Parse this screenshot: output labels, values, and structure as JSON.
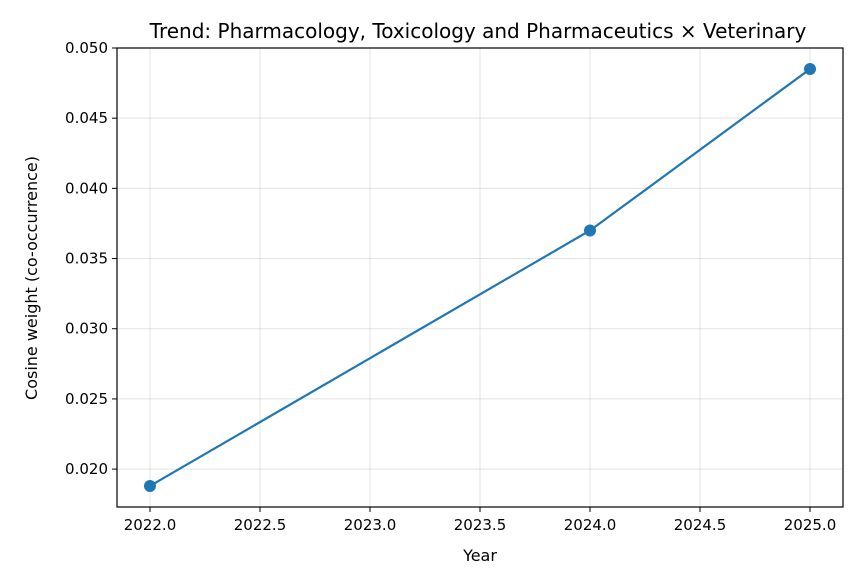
{
  "chart_data": {
    "type": "line",
    "title": "Trend: Pharmacology, Toxicology and Pharmaceutics × Veterinary",
    "xlabel": "Year",
    "ylabel": "Cosine weight (co-occurrence)",
    "xlim": [
      2021.85,
      2025.15
    ],
    "ylim": [
      0.0173,
      0.05
    ],
    "xticks": [
      2022.0,
      2022.5,
      2023.0,
      2023.5,
      2024.0,
      2024.5,
      2025.0
    ],
    "xtick_labels": [
      "2022.0",
      "2022.5",
      "2023.0",
      "2023.5",
      "2024.0",
      "2024.5",
      "2025.0"
    ],
    "yticks": [
      0.02,
      0.025,
      0.03,
      0.035,
      0.04,
      0.045,
      0.05
    ],
    "ytick_labels": [
      "0.020",
      "0.025",
      "0.030",
      "0.035",
      "0.040",
      "0.045",
      "0.050"
    ],
    "grid": true,
    "color": "#1f77b4",
    "series": [
      {
        "x": [
          2022,
          2024,
          2025
        ],
        "y": [
          0.0188,
          0.037,
          0.0485
        ]
      }
    ]
  }
}
